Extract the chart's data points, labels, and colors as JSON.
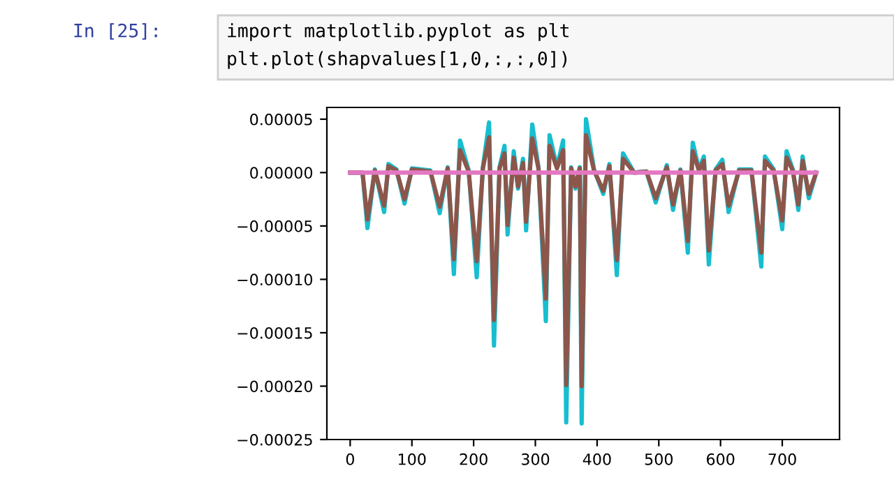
{
  "chart_data": {
    "type": "line",
    "annotations": [
      "In [25]:",
      "import matplotlib.pyplot as plt",
      "plt.plot(shapvalues[1,0,:,:,0])"
    ],
    "xlim": [
      -37.75,
      792.75
    ],
    "xticks": [
      0,
      100,
      200,
      300,
      400,
      500,
      600,
      700
    ],
    "ylim": [
      -0.00025,
      6.1e-05
    ],
    "yticks": [
      {
        "value": 5e-05,
        "label": "0.00005"
      },
      {
        "value": 0,
        "label": "0.00000"
      },
      {
        "value": -5e-05,
        "label": "−0.00005"
      },
      {
        "value": -0.0001,
        "label": "−0.00010"
      },
      {
        "value": -0.00015,
        "label": "−0.00015"
      },
      {
        "value": -0.0002,
        "label": "−0.00020"
      },
      {
        "value": -0.00025,
        "label": "−0.00025"
      }
    ],
    "grid": false,
    "marker": "none",
    "line_style": "solid",
    "x": [
      0,
      20,
      28,
      40,
      55,
      62,
      75,
      88,
      100,
      130,
      145,
      158,
      168,
      178,
      192,
      205,
      215,
      225,
      233,
      242,
      250,
      255,
      265,
      272,
      280,
      285,
      295,
      305,
      317,
      323,
      335,
      345,
      350,
      358,
      365,
      372,
      375,
      382,
      395,
      410,
      420,
      432,
      442,
      460,
      480,
      495,
      513,
      523,
      535,
      547,
      555,
      565,
      573,
      581,
      592,
      603,
      613,
      630,
      650,
      666,
      672,
      686,
      700,
      707,
      717,
      726,
      733,
      743,
      755
    ],
    "series": [
      {
        "color": "#17becf",
        "values": [
          0,
          0,
          -5.2e-05,
          3e-06,
          -3.7e-05,
          8e-06,
          3e-06,
          -2.9e-05,
          4e-06,
          2e-06,
          -3.8e-05,
          5e-06,
          -9.5e-05,
          3e-05,
          2e-06,
          -9.8e-05,
          5e-06,
          4.7e-05,
          -0.000162,
          5e-06,
          2.5e-05,
          -5.8e-05,
          2e-05,
          -1.5e-05,
          1.3e-05,
          -5.4e-05,
          4.5e-05,
          5e-06,
          -0.000139,
          3.5e-05,
          5e-06,
          3e-05,
          -0.000234,
          5e-06,
          -1.5e-05,
          5e-06,
          -0.000235,
          5e-05,
          3e-06,
          -2e-05,
          8e-06,
          -9.6e-05,
          1.8e-05,
          0,
          1e-06,
          -2.8e-05,
          7e-06,
          -3.5e-05,
          3e-06,
          -7.5e-05,
          2.8e-05,
          3e-06,
          1.5e-05,
          -8.6e-05,
          3e-06,
          1.2e-05,
          -3.7e-05,
          3e-06,
          3e-06,
          -8.8e-05,
          1.5e-05,
          3e-06,
          -5.3e-05,
          2e-05,
          3e-06,
          -3.5e-05,
          1.5e-05,
          -2.4e-05,
          0
        ]
      },
      {
        "color": "#8c564b",
        "values": [
          0,
          0,
          -4.4e-05,
          2e-06,
          -3.1e-05,
          6e-06,
          2e-06,
          -2.5e-05,
          3e-06,
          1e-06,
          -3.2e-05,
          4e-06,
          -8.1e-05,
          2.1e-05,
          1e-06,
          -8.3e-05,
          4e-06,
          3.3e-05,
          -0.000138,
          4e-06,
          1.8e-05,
          -4.9e-05,
          1.4e-05,
          -1.3e-05,
          9e-06,
          -4.6e-05,
          3.2e-05,
          4e-06,
          -0.000118,
          2.5e-05,
          4e-06,
          2.1e-05,
          -0.000199,
          4e-06,
          -1.3e-05,
          4e-06,
          -0.0002,
          3.5e-05,
          2e-06,
          -1.7e-05,
          6e-06,
          -8.2e-05,
          1.3e-05,
          0,
          1e-06,
          -2.4e-05,
          5e-06,
          -3e-05,
          2e-06,
          -6.4e-05,
          2e-05,
          2e-06,
          1.1e-05,
          -7.3e-05,
          2e-06,
          8e-06,
          -3.1e-05,
          2e-06,
          2e-06,
          -7.5e-05,
          1.1e-05,
          2e-06,
          -4.5e-05,
          1.4e-05,
          2e-06,
          -3e-05,
          1.1e-05,
          -2e-05,
          0
        ]
      },
      {
        "color": "#e377c2",
        "x": [
          0,
          755
        ],
        "values": [
          0,
          0
        ]
      }
    ]
  }
}
